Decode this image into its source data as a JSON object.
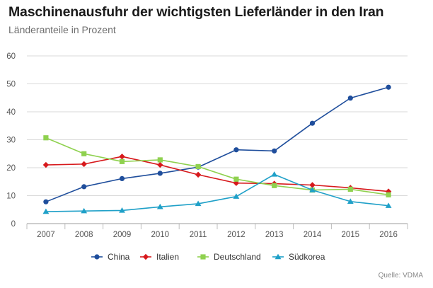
{
  "header": {
    "title": "Maschinenausfuhr der wichtigsten Lieferländer in den Iran",
    "subtitle": "Länderanteile in Prozent"
  },
  "source": "Quelle: VDMA",
  "chart_data": {
    "type": "line",
    "title": "Maschinenausfuhr der wichtigsten Lieferländer in den Iran",
    "subtitle": "Länderanteile in Prozent",
    "xlabel": "",
    "ylabel": "",
    "x": [
      "2007",
      "2008",
      "2009",
      "2010",
      "2011",
      "2012",
      "2013",
      "2014",
      "2015",
      "2016"
    ],
    "ylim": [
      0,
      60
    ],
    "yticks": [
      0,
      10,
      20,
      30,
      40,
      50,
      60
    ],
    "grid": true,
    "legend": "bottom",
    "series": [
      {
        "name": "China",
        "color": "#1f4e9c",
        "marker": "circle",
        "values": [
          7.8,
          13.2,
          16.1,
          18.0,
          20.2,
          26.4,
          26.0,
          35.9,
          44.9,
          48.8
        ]
      },
      {
        "name": "Italien",
        "color": "#d7191c",
        "marker": "diamond",
        "values": [
          21.0,
          21.3,
          24.0,
          21.0,
          17.5,
          14.5,
          14.3,
          13.8,
          12.8,
          11.5
        ]
      },
      {
        "name": "Deutschland",
        "color": "#8fd14f",
        "marker": "square",
        "values": [
          30.7,
          25.0,
          22.2,
          22.8,
          20.4,
          15.9,
          13.6,
          12.0,
          12.3,
          10.3
        ]
      },
      {
        "name": "Südkorea",
        "color": "#1fa0c8",
        "marker": "triangle",
        "values": [
          4.3,
          4.5,
          4.7,
          6.0,
          7.1,
          9.7,
          17.6,
          12.0,
          7.9,
          6.4
        ]
      }
    ]
  }
}
